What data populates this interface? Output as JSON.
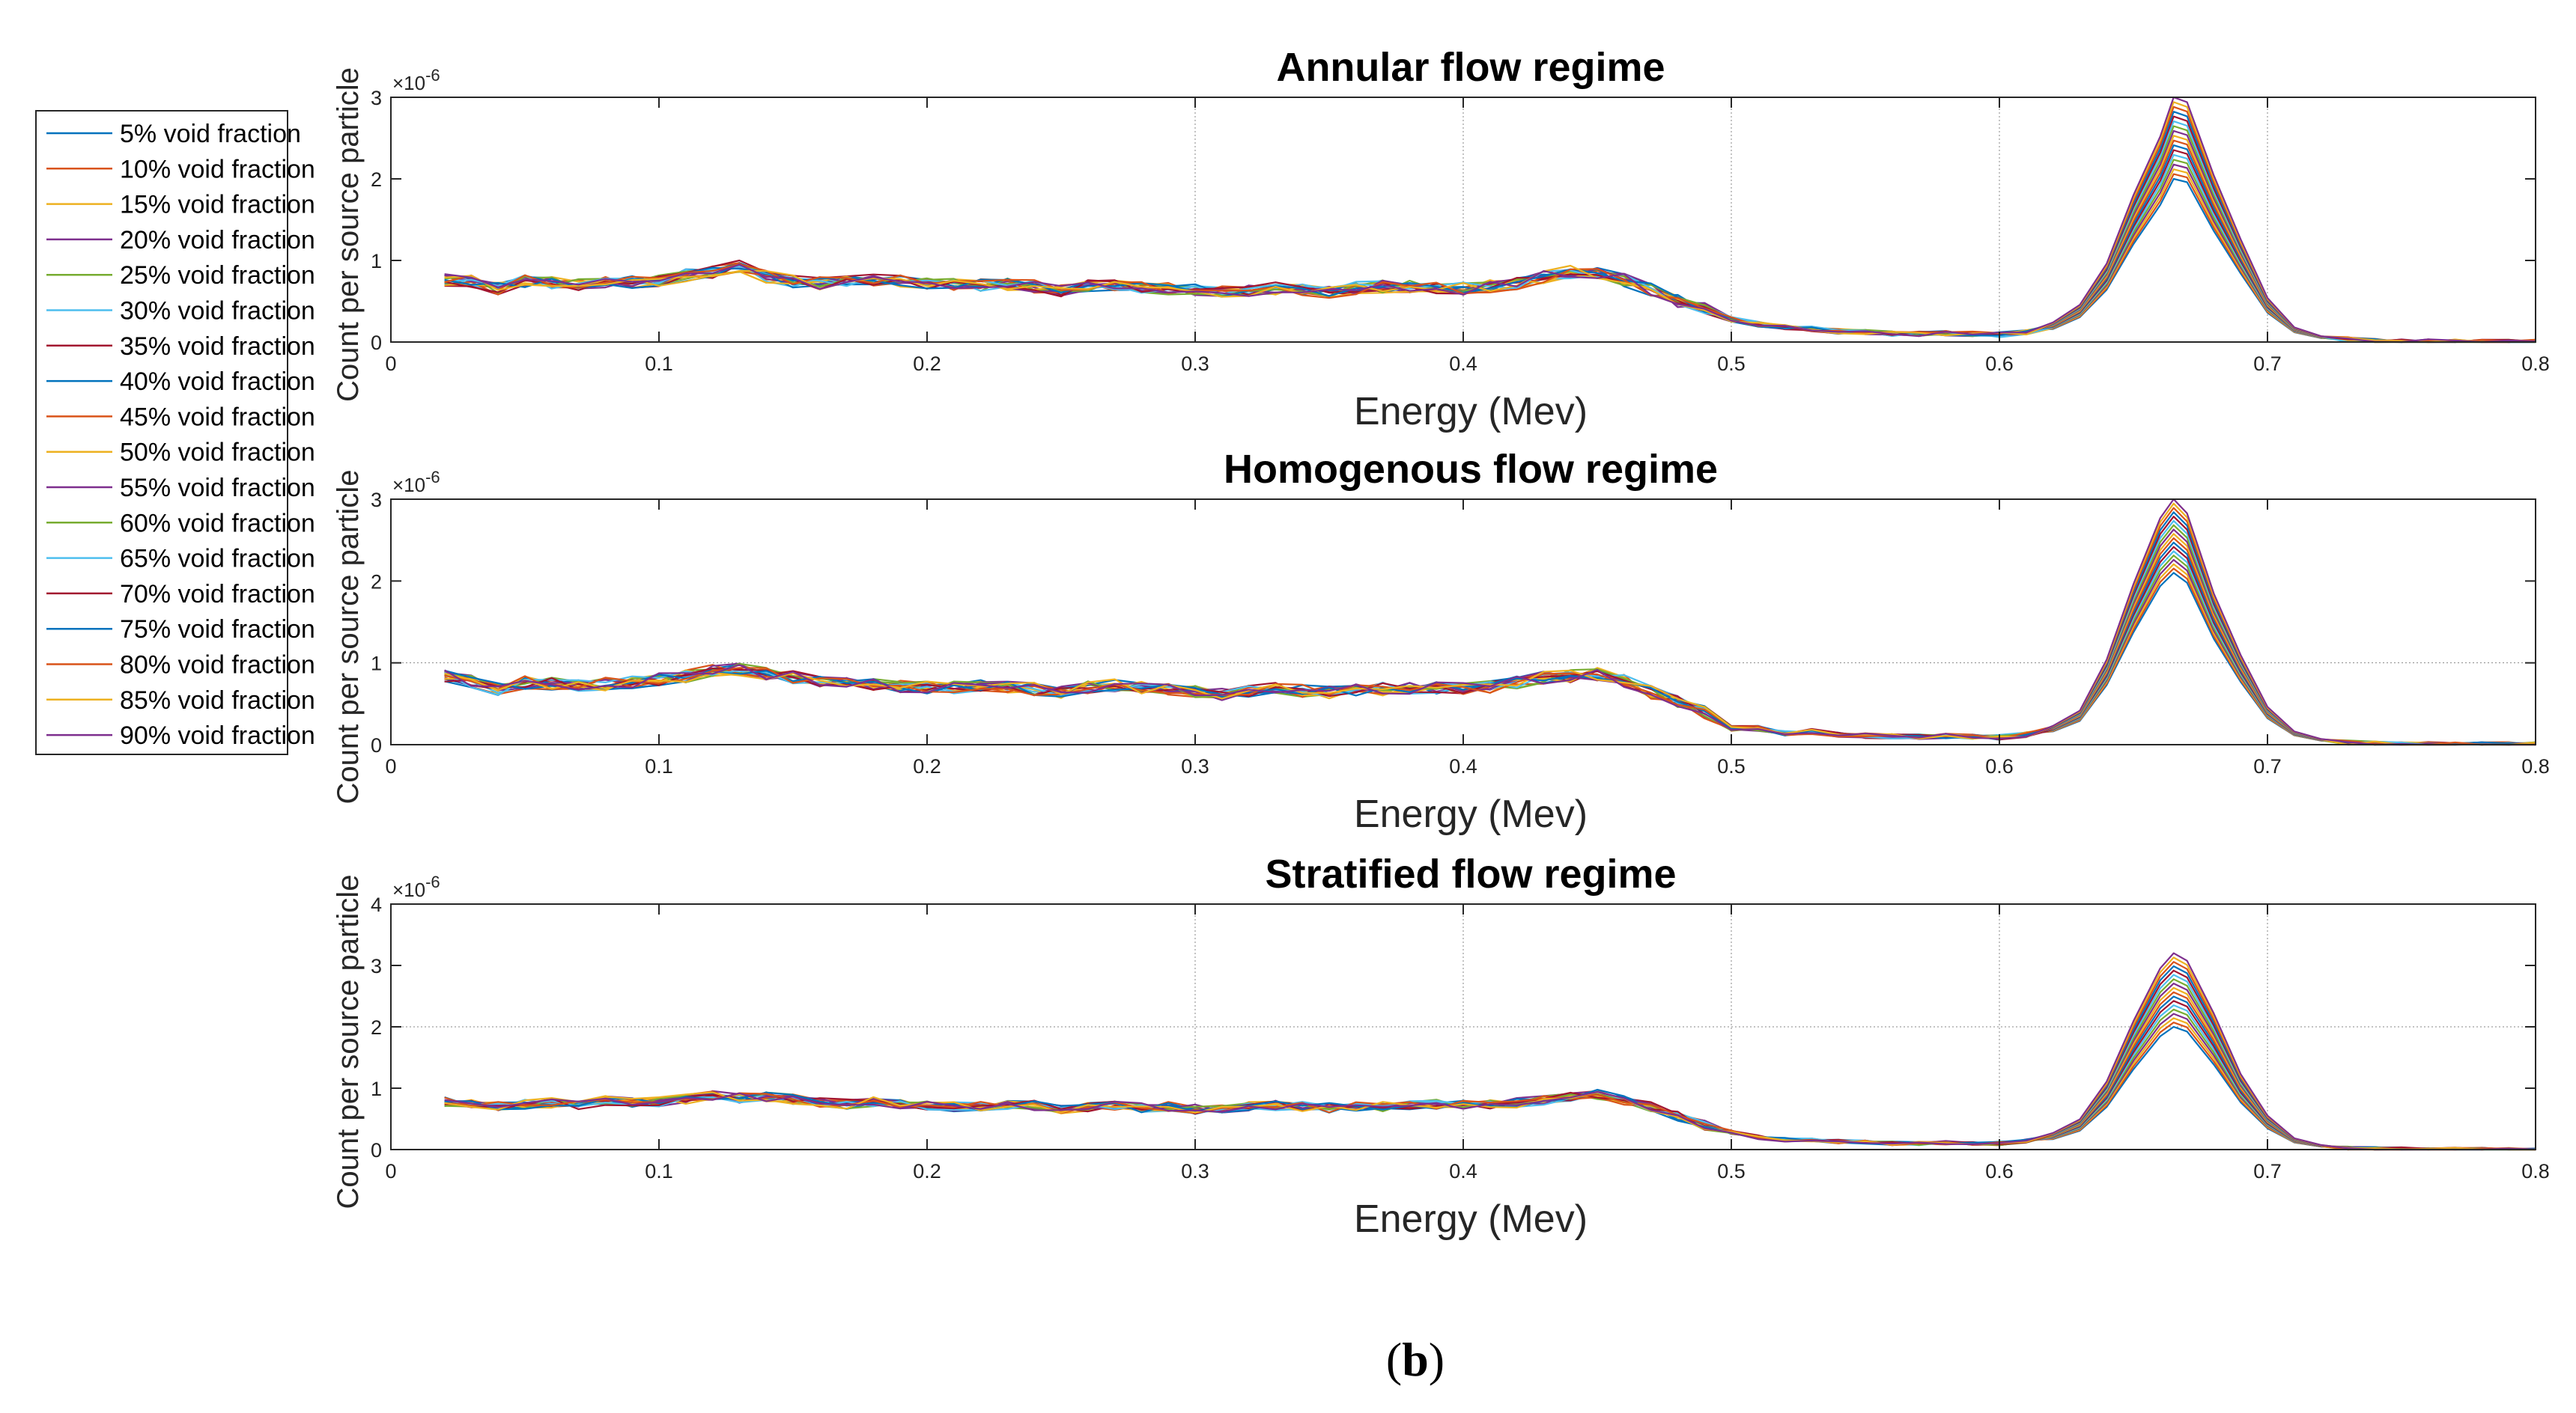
{
  "caption": {
    "open": "(",
    "letter": "b",
    "close": ")"
  },
  "legend": {
    "entries": [
      {
        "label": "5% void fraction",
        "color": "#0072BD"
      },
      {
        "label": "10% void fraction",
        "color": "#D95319"
      },
      {
        "label": "15% void fraction",
        "color": "#EDB120"
      },
      {
        "label": "20% void fraction",
        "color": "#7E2F8E"
      },
      {
        "label": "25% void fraction",
        "color": "#77AC30"
      },
      {
        "label": "30% void fraction",
        "color": "#4DBEEE"
      },
      {
        "label": "35% void fraction",
        "color": "#A2142F"
      },
      {
        "label": "40% void fraction",
        "color": "#0072BD"
      },
      {
        "label": "45% void fraction",
        "color": "#D95319"
      },
      {
        "label": "50% void fraction",
        "color": "#EDB120"
      },
      {
        "label": "55% void fraction",
        "color": "#7E2F8E"
      },
      {
        "label": "60% void fraction",
        "color": "#77AC30"
      },
      {
        "label": "65% void fraction",
        "color": "#4DBEEE"
      },
      {
        "label": "70% void fraction",
        "color": "#A2142F"
      },
      {
        "label": "75% void fraction",
        "color": "#0072BD"
      },
      {
        "label": "80% void fraction",
        "color": "#D95319"
      },
      {
        "label": "85% void fraction",
        "color": "#EDB120"
      },
      {
        "label": "90% void fraction",
        "color": "#7E2F8E"
      }
    ]
  },
  "chart_data": [
    {
      "type": "line",
      "title": "Annular flow regime",
      "xlabel": "Energy (Mev)",
      "ylabel": "Count per source particle",
      "y_multiplier": "×10",
      "y_exponent": "-6",
      "xlim": [
        0,
        0.8
      ],
      "ylim": [
        0,
        3
      ],
      "xticks": [
        "0",
        "0.1",
        "0.2",
        "0.3",
        "0.4",
        "0.5",
        "0.6",
        "0.7",
        "0.8"
      ],
      "yticks": [
        "0",
        "1",
        "2",
        "3"
      ],
      "grid_x": [
        0.3,
        0.4,
        0.5,
        0.6,
        0.7
      ],
      "grid_y": [],
      "series_note": "18 series, one per void fraction 5%–90%, colors cycle as in legend",
      "x": [
        0.02,
        0.03,
        0.04,
        0.05,
        0.06,
        0.07,
        0.08,
        0.09,
        0.1,
        0.11,
        0.12,
        0.13,
        0.14,
        0.15,
        0.16,
        0.17,
        0.18,
        0.19,
        0.2,
        0.21,
        0.22,
        0.23,
        0.24,
        0.25,
        0.26,
        0.27,
        0.28,
        0.29,
        0.3,
        0.31,
        0.32,
        0.33,
        0.34,
        0.35,
        0.36,
        0.37,
        0.38,
        0.39,
        0.4,
        0.41,
        0.42,
        0.43,
        0.44,
        0.45,
        0.46,
        0.47,
        0.48,
        0.49,
        0.5,
        0.51,
        0.52,
        0.53,
        0.54,
        0.55,
        0.56,
        0.57,
        0.58,
        0.59,
        0.6,
        0.61,
        0.62,
        0.63,
        0.64,
        0.65,
        0.66,
        0.665,
        0.67,
        0.68,
        0.69,
        0.7,
        0.71,
        0.72,
        0.73,
        0.74,
        0.75,
        0.76,
        0.77,
        0.78,
        0.79,
        0.8
      ],
      "base_shape": [
        0.76,
        0.74,
        0.66,
        0.74,
        0.72,
        0.7,
        0.72,
        0.73,
        0.76,
        0.82,
        0.86,
        0.92,
        0.8,
        0.74,
        0.72,
        0.74,
        0.76,
        0.74,
        0.72,
        0.7,
        0.7,
        0.7,
        0.68,
        0.62,
        0.68,
        0.7,
        0.68,
        0.66,
        0.64,
        0.62,
        0.64,
        0.66,
        0.64,
        0.62,
        0.66,
        0.68,
        0.68,
        0.66,
        0.66,
        0.68,
        0.72,
        0.8,
        0.86,
        0.84,
        0.76,
        0.64,
        0.5,
        0.4,
        0.28,
        0.22,
        0.18,
        0.16,
        0.13,
        0.12,
        0.1,
        0.1,
        0.11,
        0.1,
        0.09,
        0.12,
        0.2,
        0.38,
        0.8,
        1.5,
        2.1,
        2.5,
        2.45,
        1.7,
        1.05,
        0.45,
        0.15,
        0.06,
        0.03,
        0.01,
        0.005,
        0.002,
        0.001,
        0,
        0,
        0
      ],
      "peak_range": [
        2.0,
        3.0
      ]
    },
    {
      "type": "line",
      "title": "Homogenous flow regime",
      "xlabel": "Energy (Mev)",
      "ylabel": "Count per source particle",
      "y_multiplier": "×10",
      "y_exponent": "-6",
      "xlim": [
        0,
        0.8
      ],
      "ylim": [
        0,
        3
      ],
      "xticks": [
        "0",
        "0.1",
        "0.2",
        "0.3",
        "0.4",
        "0.5",
        "0.6",
        "0.7",
        "0.8"
      ],
      "yticks": [
        "0",
        "1",
        "2",
        "3"
      ],
      "grid_x": [],
      "grid_y": [
        1,
        3
      ],
      "series_note": "18 series, one per void fraction 5%–90%, colors cycle as in legend",
      "x": [
        0.02,
        0.03,
        0.04,
        0.05,
        0.06,
        0.07,
        0.08,
        0.09,
        0.1,
        0.11,
        0.12,
        0.13,
        0.14,
        0.15,
        0.16,
        0.17,
        0.18,
        0.19,
        0.2,
        0.21,
        0.22,
        0.23,
        0.24,
        0.25,
        0.26,
        0.27,
        0.28,
        0.29,
        0.3,
        0.31,
        0.32,
        0.33,
        0.34,
        0.35,
        0.36,
        0.37,
        0.38,
        0.39,
        0.4,
        0.41,
        0.42,
        0.43,
        0.44,
        0.45,
        0.46,
        0.47,
        0.48,
        0.49,
        0.5,
        0.51,
        0.52,
        0.53,
        0.54,
        0.55,
        0.56,
        0.57,
        0.58,
        0.59,
        0.6,
        0.61,
        0.62,
        0.63,
        0.64,
        0.65,
        0.66,
        0.665,
        0.67,
        0.68,
        0.69,
        0.7,
        0.71,
        0.72,
        0.73,
        0.74,
        0.75,
        0.76,
        0.77,
        0.78,
        0.79,
        0.8
      ],
      "base_shape": [
        0.84,
        0.78,
        0.68,
        0.76,
        0.74,
        0.72,
        0.74,
        0.76,
        0.8,
        0.84,
        0.9,
        0.92,
        0.86,
        0.82,
        0.78,
        0.76,
        0.74,
        0.72,
        0.7,
        0.7,
        0.72,
        0.7,
        0.68,
        0.64,
        0.7,
        0.72,
        0.7,
        0.68,
        0.64,
        0.62,
        0.66,
        0.68,
        0.66,
        0.64,
        0.66,
        0.68,
        0.7,
        0.7,
        0.68,
        0.7,
        0.76,
        0.82,
        0.84,
        0.86,
        0.78,
        0.64,
        0.52,
        0.4,
        0.2,
        0.2,
        0.14,
        0.16,
        0.12,
        0.11,
        0.1,
        0.1,
        0.11,
        0.1,
        0.09,
        0.12,
        0.2,
        0.36,
        0.9,
        1.7,
        2.4,
        2.6,
        2.45,
        1.6,
        0.95,
        0.4,
        0.14,
        0.06,
        0.02,
        0.01,
        0.005,
        0.002,
        0.001,
        0,
        0,
        0
      ],
      "peak_range": [
        2.1,
        3.0
      ]
    },
    {
      "type": "line",
      "title": "Stratified flow regime",
      "xlabel": "Energy (Mev)",
      "ylabel": "Count per source particle",
      "y_multiplier": "×10",
      "y_exponent": "-6",
      "xlim": [
        0,
        0.8
      ],
      "ylim": [
        0,
        4
      ],
      "xticks": [
        "0",
        "0.1",
        "0.2",
        "0.3",
        "0.4",
        "0.5",
        "0.6",
        "0.7",
        "0.8"
      ],
      "yticks": [
        "0",
        "1",
        "2",
        "3",
        "4"
      ],
      "grid_x": [
        0.3,
        0.4,
        0.5,
        0.6,
        0.7
      ],
      "grid_y": [
        2
      ],
      "series_note": "18 series, one per void fraction 5%–90%, colors cycle as in legend",
      "x": [
        0.02,
        0.03,
        0.04,
        0.05,
        0.06,
        0.07,
        0.08,
        0.09,
        0.1,
        0.11,
        0.12,
        0.13,
        0.14,
        0.15,
        0.16,
        0.17,
        0.18,
        0.19,
        0.2,
        0.21,
        0.22,
        0.23,
        0.24,
        0.25,
        0.26,
        0.27,
        0.28,
        0.29,
        0.3,
        0.31,
        0.32,
        0.33,
        0.34,
        0.35,
        0.36,
        0.37,
        0.38,
        0.39,
        0.4,
        0.41,
        0.42,
        0.43,
        0.44,
        0.45,
        0.46,
        0.47,
        0.48,
        0.49,
        0.5,
        0.51,
        0.52,
        0.53,
        0.54,
        0.55,
        0.56,
        0.57,
        0.58,
        0.59,
        0.6,
        0.61,
        0.62,
        0.63,
        0.64,
        0.65,
        0.66,
        0.665,
        0.67,
        0.68,
        0.69,
        0.7,
        0.71,
        0.72,
        0.73,
        0.74,
        0.75,
        0.76,
        0.77,
        0.78,
        0.79,
        0.8
      ],
      "base_shape": [
        0.78,
        0.74,
        0.7,
        0.74,
        0.76,
        0.72,
        0.8,
        0.76,
        0.78,
        0.82,
        0.88,
        0.84,
        0.86,
        0.82,
        0.76,
        0.74,
        0.78,
        0.74,
        0.72,
        0.7,
        0.7,
        0.72,
        0.72,
        0.66,
        0.7,
        0.72,
        0.68,
        0.7,
        0.66,
        0.66,
        0.7,
        0.72,
        0.7,
        0.68,
        0.7,
        0.7,
        0.72,
        0.74,
        0.72,
        0.74,
        0.76,
        0.8,
        0.86,
        0.9,
        0.8,
        0.7,
        0.54,
        0.4,
        0.28,
        0.2,
        0.16,
        0.15,
        0.13,
        0.12,
        0.1,
        0.1,
        0.11,
        0.1,
        0.1,
        0.14,
        0.22,
        0.4,
        0.9,
        1.7,
        2.4,
        2.6,
        2.5,
        1.8,
        1.0,
        0.45,
        0.15,
        0.06,
        0.02,
        0.01,
        0.005,
        0.002,
        0.001,
        0,
        0,
        0
      ],
      "peak_range": [
        2.0,
        3.2
      ]
    }
  ]
}
